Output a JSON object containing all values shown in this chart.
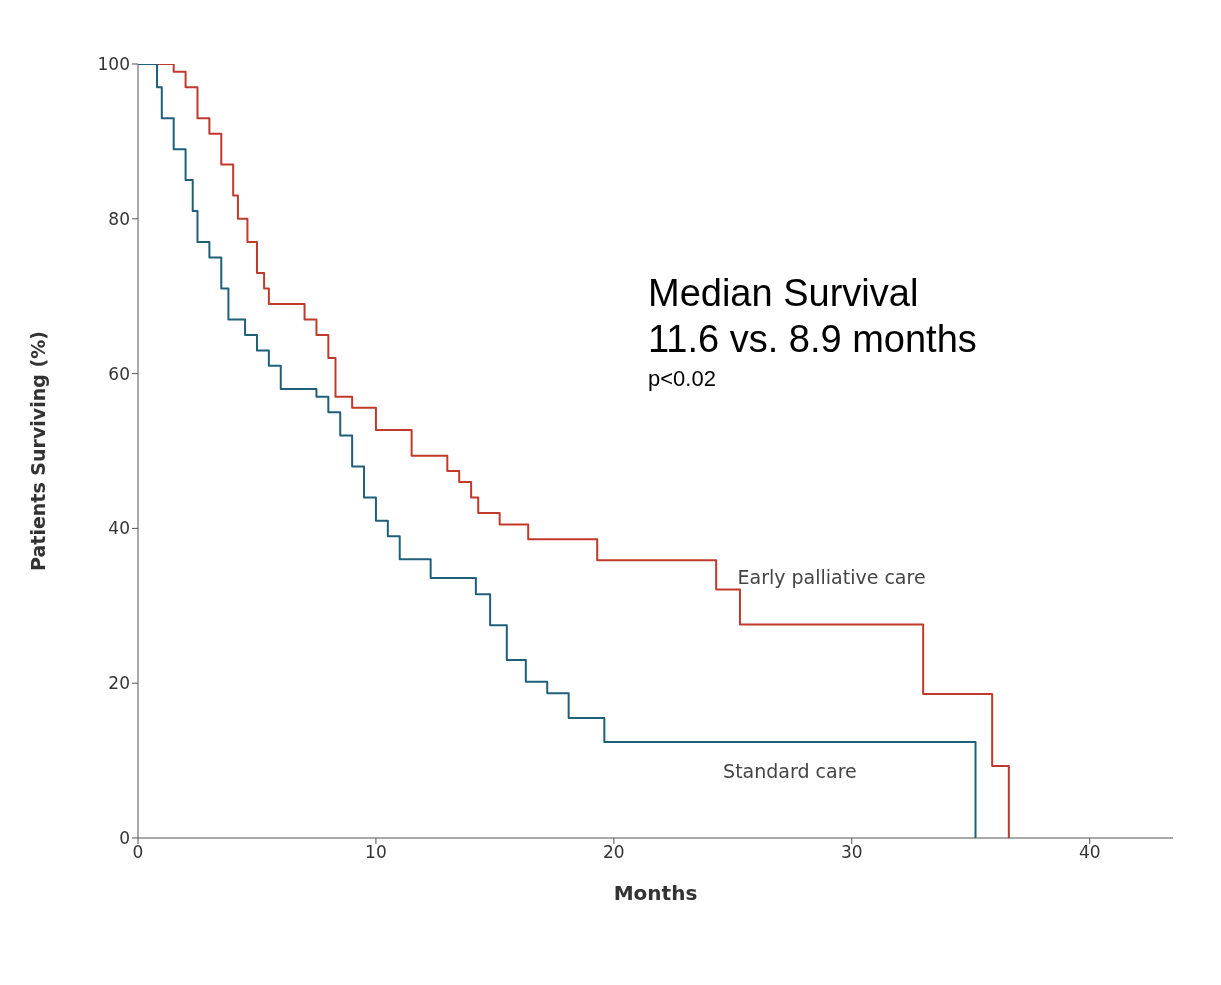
{
  "chart_data": {
    "type": "step",
    "xlabel": "Months",
    "ylabel": "Patients Surviving (%)",
    "xlim": [
      0,
      43.5
    ],
    "ylim": [
      0,
      100
    ],
    "xticks": [
      0,
      10,
      20,
      30,
      40
    ],
    "yticks": [
      0,
      20,
      40,
      60,
      80,
      100
    ],
    "marker": "none",
    "line_style": "solid",
    "annotations": [
      "Median Survival",
      "11.6 vs. 8.9 months",
      "p<0.02"
    ],
    "series": [
      {
        "name": "Early palliative care",
        "color": "#c0392b",
        "x": [
          0,
          1.5,
          2,
          2.5,
          3,
          3.5,
          4,
          4.2,
          4.6,
          5,
          5.3,
          5.5,
          7,
          7.5,
          8,
          8.3,
          9,
          10,
          11.5,
          13,
          13.5,
          14,
          14.3,
          15.2,
          16.4,
          19.3,
          24.3,
          25.3,
          33,
          35.9,
          36.6
        ],
        "values": [
          100,
          99,
          97,
          93,
          91,
          87,
          83,
          80,
          77,
          73,
          71,
          69,
          67,
          65,
          62,
          57,
          55.6,
          52.7,
          49.4,
          47.4,
          46,
          44,
          42,
          40.5,
          38.6,
          35.9,
          32.1,
          27.6,
          18.6,
          9.3,
          0
        ]
      },
      {
        "name": "Standard care",
        "color": "#1f5f7a",
        "x": [
          0,
          0.8,
          1,
          1.5,
          2,
          2.3,
          2.5,
          3,
          3.5,
          3.8,
          4.5,
          5,
          5.5,
          6,
          7.5,
          8,
          8.5,
          9,
          9.5,
          10,
          10.5,
          11,
          12.3,
          14.2,
          14.8,
          15.5,
          16.3,
          17.2,
          18.1,
          19.6,
          35.2
        ],
        "values": [
          100,
          97,
          93,
          89,
          85,
          81,
          77,
          75,
          71,
          67,
          65,
          63,
          61,
          58,
          57,
          55,
          52,
          48,
          44,
          41,
          39,
          36,
          33.6,
          31.5,
          27.5,
          23,
          20.2,
          18.7,
          15.5,
          12.4,
          0
        ]
      }
    ]
  }
}
